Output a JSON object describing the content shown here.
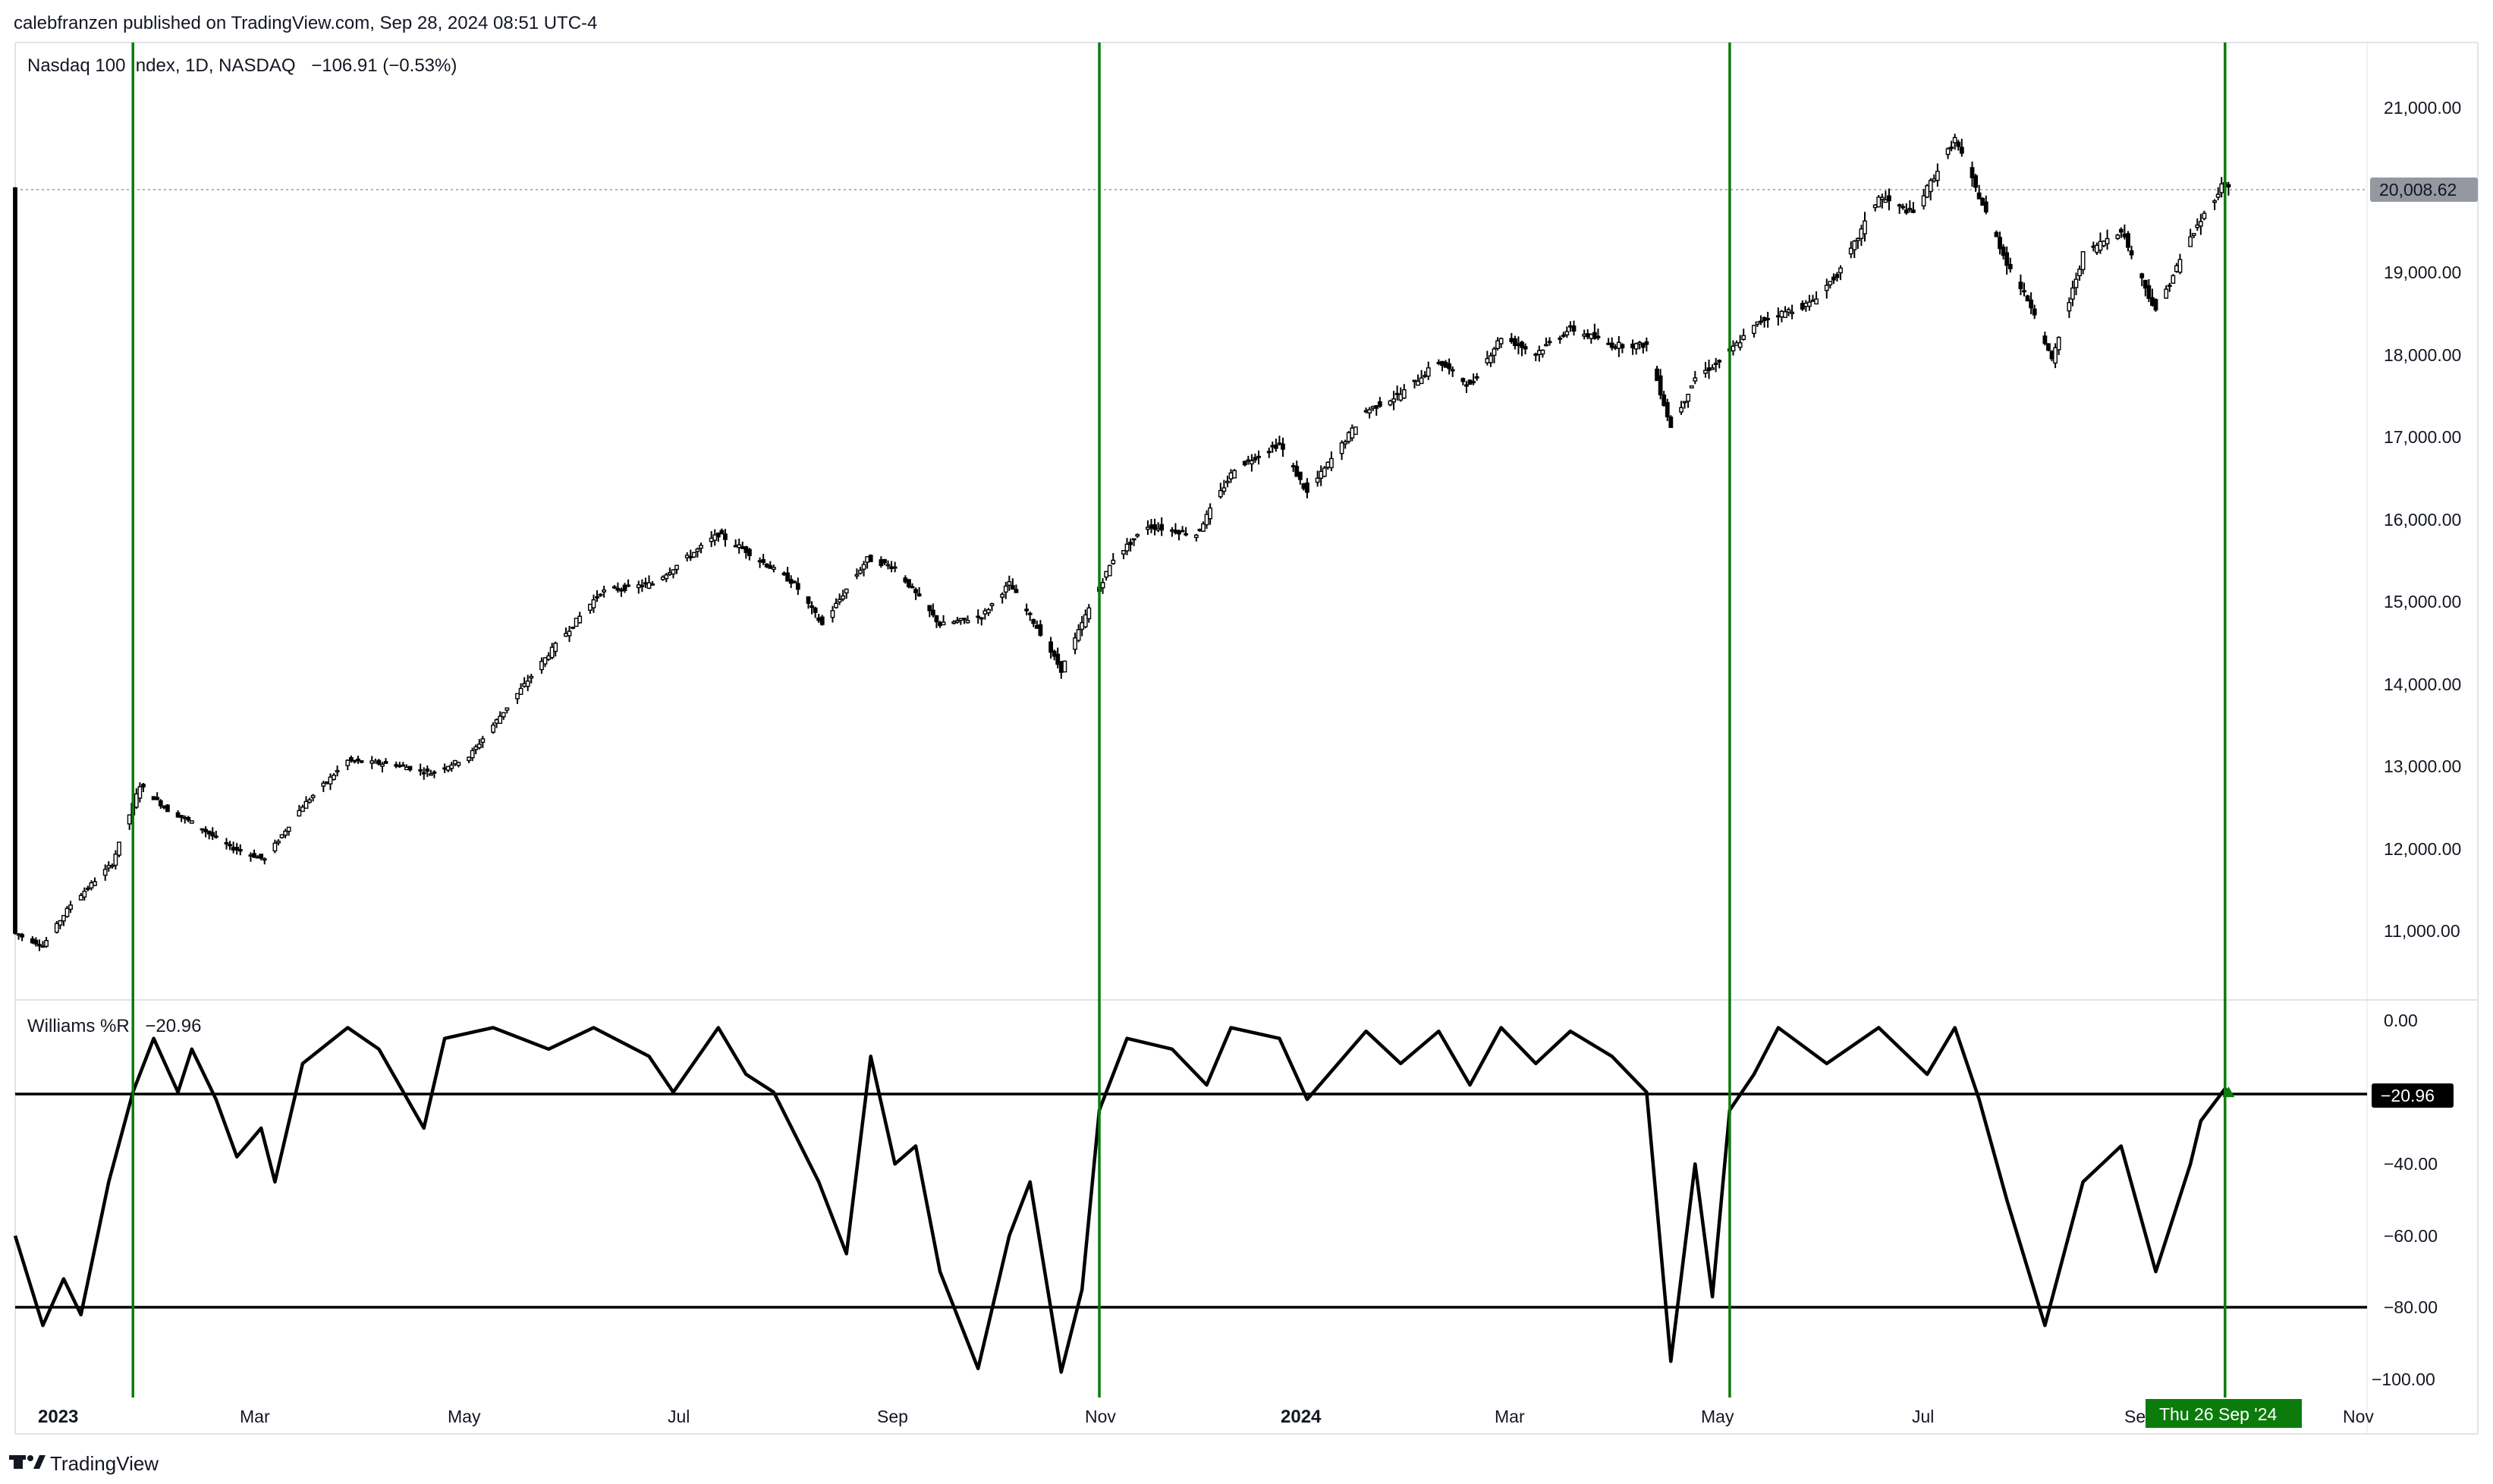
{
  "publisher_line": "calebfranzen published on TradingView.com, Sep 28, 2024 08:51 UTC-4",
  "brand": "TradingView",
  "price_pane": {
    "symbol_line": "Nasdaq 100 Index, 1D, NASDAQ",
    "change_text": "−106.91 (−0.53%)",
    "last_price_label": "20,008.62",
    "last_price_color": "#9598a1",
    "y_tick_labels": [
      "21,000.00",
      "20,000.00",
      "19,000.00",
      "18,000.00",
      "17,000.00",
      "16,000.00",
      "15,000.00",
      "14,000.00",
      "13,000.00",
      "12,000.00",
      "11,000.00"
    ]
  },
  "indicator_pane": {
    "name": "Williams %R",
    "value_text": "−20.96",
    "last_value_label": "−20.96",
    "y_tick_labels": [
      "0.00",
      "−20.00",
      "−40.00",
      "−60.00",
      "−80.00",
      "−100.00"
    ],
    "levels": [
      -20,
      -80
    ]
  },
  "time_axis": {
    "labels": [
      "2023",
      "Mar",
      "May",
      "Jul",
      "Sep",
      "Nov",
      "2024",
      "Mar",
      "May",
      "Jul",
      "Se",
      "Nov"
    ],
    "bold": [
      "2023",
      "2024"
    ],
    "crosshair_label": "Thu 26 Sep '24",
    "crosshair_color": "#0b7c0b"
  },
  "signal_line_color": "#0b7c0b",
  "chart_data": [
    {
      "type": "candlestick",
      "title": "Nasdaq 100 Index, 1D, NASDAQ",
      "x_range": [
        "2022-12-28",
        "2024-11-06"
      ],
      "ylim": [
        10300,
        21700
      ],
      "series": [
        {
          "x": "2022-12-28",
          "y": 10950
        },
        {
          "x": "2023-01-05",
          "y": 10800
        },
        {
          "x": "2023-01-13",
          "y": 11300
        },
        {
          "x": "2023-01-25",
          "y": 11800
        },
        {
          "x": "2023-02-02",
          "y": 12750
        },
        {
          "x": "2023-02-10",
          "y": 12450
        },
        {
          "x": "2023-02-17",
          "y": 12300
        },
        {
          "x": "2023-02-28",
          "y": 12000
        },
        {
          "x": "2023-03-10",
          "y": 11850
        },
        {
          "x": "2023-03-21",
          "y": 12500
        },
        {
          "x": "2023-04-03",
          "y": 13050
        },
        {
          "x": "2023-04-17",
          "y": 13000
        },
        {
          "x": "2023-04-27",
          "y": 12900
        },
        {
          "x": "2023-05-08",
          "y": 13100
        },
        {
          "x": "2023-05-19",
          "y": 13700
        },
        {
          "x": "2023-06-01",
          "y": 14400
        },
        {
          "x": "2023-06-15",
          "y": 15100
        },
        {
          "x": "2023-06-30",
          "y": 15200
        },
        {
          "x": "2023-07-19",
          "y": 15800
        },
        {
          "x": "2023-07-27",
          "y": 15600
        },
        {
          "x": "2023-08-10",
          "y": 15200
        },
        {
          "x": "2023-08-18",
          "y": 14700
        },
        {
          "x": "2023-08-31",
          "y": 15500
        },
        {
          "x": "2023-09-08",
          "y": 15400
        },
        {
          "x": "2023-09-21",
          "y": 14700
        },
        {
          "x": "2023-10-03",
          "y": 14800
        },
        {
          "x": "2023-10-11",
          "y": 15200
        },
        {
          "x": "2023-10-20",
          "y": 14600
        },
        {
          "x": "2023-10-26",
          "y": 14150
        },
        {
          "x": "2023-11-03",
          "y": 14900
        },
        {
          "x": "2023-11-10",
          "y": 15500
        },
        {
          "x": "2023-11-20",
          "y": 15900
        },
        {
          "x": "2023-12-04",
          "y": 15800
        },
        {
          "x": "2023-12-15",
          "y": 16600
        },
        {
          "x": "2023-12-28",
          "y": 16900
        },
        {
          "x": "2024-01-05",
          "y": 16300
        },
        {
          "x": "2024-01-22",
          "y": 17300
        },
        {
          "x": "2024-02-01",
          "y": 17500
        },
        {
          "x": "2024-02-12",
          "y": 17900
        },
        {
          "x": "2024-02-21",
          "y": 17600
        },
        {
          "x": "2024-03-01",
          "y": 18200
        },
        {
          "x": "2024-03-11",
          "y": 18000
        },
        {
          "x": "2024-03-21",
          "y": 18300
        },
        {
          "x": "2024-04-02",
          "y": 18100
        },
        {
          "x": "2024-04-12",
          "y": 18100
        },
        {
          "x": "2024-04-19",
          "y": 17100
        },
        {
          "x": "2024-04-26",
          "y": 17700
        },
        {
          "x": "2024-05-03",
          "y": 17900
        },
        {
          "x": "2024-05-15",
          "y": 18400
        },
        {
          "x": "2024-05-29",
          "y": 18600
        },
        {
          "x": "2024-06-07",
          "y": 19000
        },
        {
          "x": "2024-06-18",
          "y": 19900
        },
        {
          "x": "2024-06-28",
          "y": 19700
        },
        {
          "x": "2024-07-10",
          "y": 20600
        },
        {
          "x": "2024-07-17",
          "y": 19900
        },
        {
          "x": "2024-07-25",
          "y": 19100
        },
        {
          "x": "2024-08-02",
          "y": 18500
        },
        {
          "x": "2024-08-07",
          "y": 17900
        },
        {
          "x": "2024-08-16",
          "y": 19200
        },
        {
          "x": "2024-08-27",
          "y": 19500
        },
        {
          "x": "2024-09-06",
          "y": 18500
        },
        {
          "x": "2024-09-16",
          "y": 19400
        },
        {
          "x": "2024-09-26",
          "y": 20100
        },
        {
          "x": "2024-09-27",
          "y": 20009
        }
      ]
    },
    {
      "type": "line",
      "title": "Williams %R",
      "ylim": [
        -103,
        3
      ],
      "levels": [
        -20,
        -80
      ],
      "series": [
        {
          "x": "2022-12-28",
          "y": -60
        },
        {
          "x": "2023-01-05",
          "y": -85
        },
        {
          "x": "2023-01-11",
          "y": -72
        },
        {
          "x": "2023-01-16",
          "y": -82
        },
        {
          "x": "2023-01-24",
          "y": -45
        },
        {
          "x": "2023-01-31",
          "y": -20
        },
        {
          "x": "2023-02-06",
          "y": -5
        },
        {
          "x": "2023-02-13",
          "y": -20
        },
        {
          "x": "2023-02-17",
          "y": -8
        },
        {
          "x": "2023-02-24",
          "y": -22
        },
        {
          "x": "2023-03-02",
          "y": -38
        },
        {
          "x": "2023-03-09",
          "y": -30
        },
        {
          "x": "2023-03-13",
          "y": -45
        },
        {
          "x": "2023-03-21",
          "y": -12
        },
        {
          "x": "2023-04-03",
          "y": -2
        },
        {
          "x": "2023-04-12",
          "y": -8
        },
        {
          "x": "2023-04-25",
          "y": -30
        },
        {
          "x": "2023-05-01",
          "y": -5
        },
        {
          "x": "2023-05-15",
          "y": -2
        },
        {
          "x": "2023-05-31",
          "y": -8
        },
        {
          "x": "2023-06-13",
          "y": -2
        },
        {
          "x": "2023-06-29",
          "y": -10
        },
        {
          "x": "2023-07-06",
          "y": -20
        },
        {
          "x": "2023-07-19",
          "y": -2
        },
        {
          "x": "2023-07-27",
          "y": -15
        },
        {
          "x": "2023-08-04",
          "y": -20
        },
        {
          "x": "2023-08-17",
          "y": -45
        },
        {
          "x": "2023-08-25",
          "y": -65
        },
        {
          "x": "2023-09-01",
          "y": -10
        },
        {
          "x": "2023-09-08",
          "y": -40
        },
        {
          "x": "2023-09-14",
          "y": -35
        },
        {
          "x": "2023-09-21",
          "y": -70
        },
        {
          "x": "2023-10-02",
          "y": -97
        },
        {
          "x": "2023-10-11",
          "y": -60
        },
        {
          "x": "2023-10-17",
          "y": -45
        },
        {
          "x": "2023-10-26",
          "y": -98
        },
        {
          "x": "2023-11-01",
          "y": -75
        },
        {
          "x": "2023-11-06",
          "y": -25
        },
        {
          "x": "2023-11-14",
          "y": -5
        },
        {
          "x": "2023-11-27",
          "y": -8
        },
        {
          "x": "2023-12-07",
          "y": -18
        },
        {
          "x": "2023-12-14",
          "y": -2
        },
        {
          "x": "2023-12-28",
          "y": -5
        },
        {
          "x": "2024-01-05",
          "y": -22
        },
        {
          "x": "2024-01-22",
          "y": -3
        },
        {
          "x": "2024-02-01",
          "y": -12
        },
        {
          "x": "2024-02-12",
          "y": -3
        },
        {
          "x": "2024-02-21",
          "y": -18
        },
        {
          "x": "2024-03-01",
          "y": -2
        },
        {
          "x": "2024-03-11",
          "y": -12
        },
        {
          "x": "2024-03-21",
          "y": -3
        },
        {
          "x": "2024-04-02",
          "y": -10
        },
        {
          "x": "2024-04-12",
          "y": -20
        },
        {
          "x": "2024-04-19",
          "y": -95
        },
        {
          "x": "2024-04-26",
          "y": -40
        },
        {
          "x": "2024-05-01",
          "y": -77
        },
        {
          "x": "2024-05-06",
          "y": -25
        },
        {
          "x": "2024-05-13",
          "y": -15
        },
        {
          "x": "2024-05-20",
          "y": -2
        },
        {
          "x": "2024-06-03",
          "y": -12
        },
        {
          "x": "2024-06-18",
          "y": -2
        },
        {
          "x": "2024-07-02",
          "y": -15
        },
        {
          "x": "2024-07-10",
          "y": -2
        },
        {
          "x": "2024-07-17",
          "y": -22
        },
        {
          "x": "2024-07-25",
          "y": -50
        },
        {
          "x": "2024-08-05",
          "y": -85
        },
        {
          "x": "2024-08-16",
          "y": -45
        },
        {
          "x": "2024-08-27",
          "y": -35
        },
        {
          "x": "2024-09-06",
          "y": -70
        },
        {
          "x": "2024-09-16",
          "y": -40
        },
        {
          "x": "2024-09-19",
          "y": -28
        },
        {
          "x": "2024-09-26",
          "y": -19
        },
        {
          "x": "2024-09-27",
          "y": -20.96
        }
      ]
    }
  ],
  "signal_dates": [
    "2023-01-31",
    "2023-11-06",
    "2024-05-06",
    "2024-09-26"
  ]
}
